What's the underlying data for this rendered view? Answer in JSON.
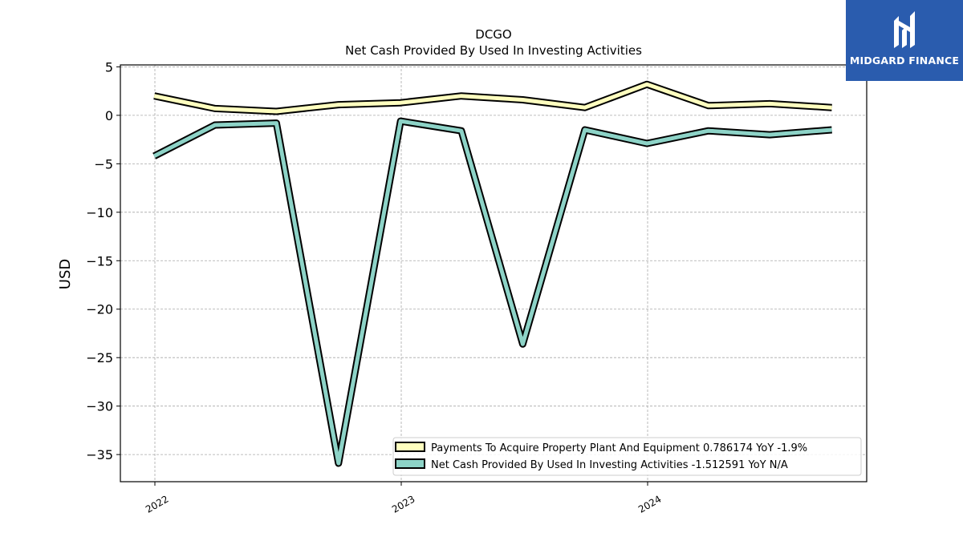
{
  "brand": {
    "name": "MIDGARD FINANCE",
    "bg_color": "#2a5cae"
  },
  "chart_data": {
    "type": "line",
    "title": "DCGO",
    "subtitle": "Net Cash Provided By Used In Investing Activities",
    "ylabel": "USD",
    "xlabel": "",
    "ylim": [
      -37.8,
      5.2
    ],
    "yticks": [
      5,
      0,
      -5,
      -10,
      -15,
      -20,
      -25,
      -30,
      -35
    ],
    "xticks": [
      "2022",
      "2023",
      "2024"
    ],
    "grid": true,
    "legend_position": "lower-right",
    "x": [
      "2021-12-31",
      "2022-03-31",
      "2022-06-30",
      "2022-09-30",
      "2022-12-31",
      "2023-03-31",
      "2023-06-30",
      "2023-09-30",
      "2023-12-31",
      "2024-03-31",
      "2024-06-30",
      "2024-09-30"
    ],
    "series": [
      {
        "name": "Payments To Acquire Property Plant And Equipment",
        "legend_label": "Payments To Acquire Property Plant And Equipment  0.786174 YoY -1.9%",
        "color": "#ffffbf",
        "values": [
          2.0,
          0.7,
          0.4,
          1.1,
          1.3,
          2.0,
          1.6,
          0.8,
          3.2,
          1.0,
          1.2,
          0.8
        ]
      },
      {
        "name": "Net Cash Provided By Used In Investing Activities",
        "legend_label": "Net Cash Provided By Used In Investing Activities  -1.512591 YoY N/A",
        "color": "#8dd3c7",
        "values": [
          -4.2,
          -1.0,
          -0.8,
          -35.9,
          -0.6,
          -1.6,
          -23.6,
          -1.5,
          -2.9,
          -1.6,
          -2.0,
          -1.5
        ]
      }
    ]
  }
}
